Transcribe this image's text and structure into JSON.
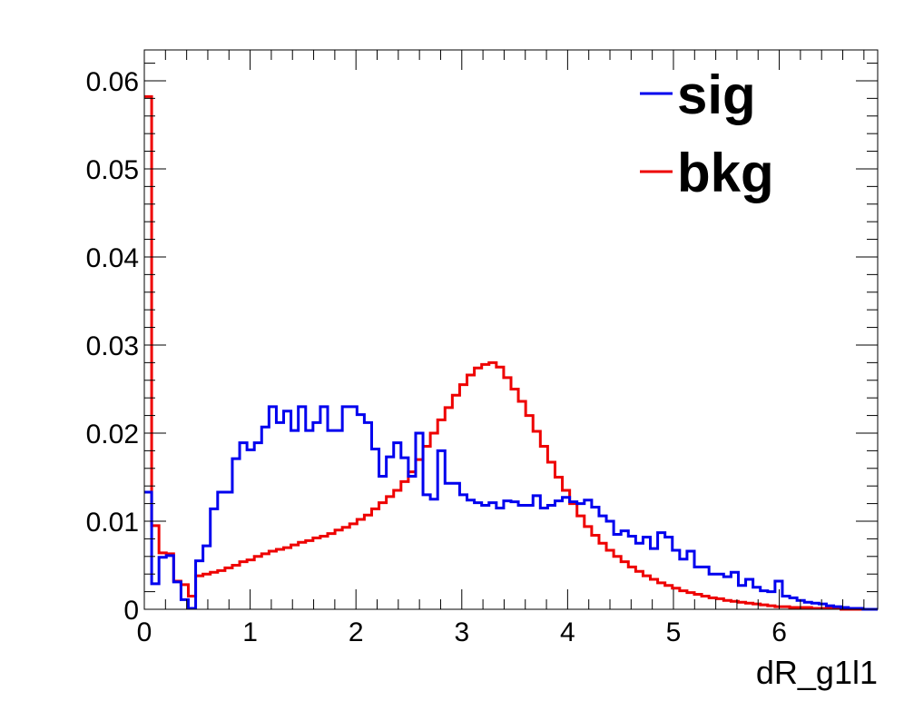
{
  "chart_data": {
    "type": "line",
    "title": "",
    "xlabel": "dR_g1l1",
    "ylabel": "",
    "xlim": [
      0,
      6.93
    ],
    "ylim": [
      0,
      0.0635
    ],
    "grid": false,
    "legend_position": "top-right",
    "x_ticks": [
      {
        "value": 0,
        "label": "0"
      },
      {
        "value": 1,
        "label": "1"
      },
      {
        "value": 2,
        "label": "2"
      },
      {
        "value": 3,
        "label": "3"
      },
      {
        "value": 4,
        "label": "4"
      },
      {
        "value": 5,
        "label": "5"
      },
      {
        "value": 6,
        "label": "6"
      }
    ],
    "y_ticks": [
      {
        "value": 0,
        "label": "0"
      },
      {
        "value": 0.01,
        "label": "0.01"
      },
      {
        "value": 0.02,
        "label": "0.02"
      },
      {
        "value": 0.03,
        "label": "0.03"
      },
      {
        "value": 0.04,
        "label": "0.04"
      },
      {
        "value": 0.05,
        "label": "0.05"
      },
      {
        "value": 0.06,
        "label": "0.06"
      }
    ],
    "bin_width": 0.0693,
    "series": [
      {
        "name": "sig",
        "color": "#0000ee",
        "values": [
          0.0133,
          0.0029,
          0.0059,
          0.0061,
          0.0031,
          0.0011,
          0.0001,
          0.0055,
          0.0072,
          0.0114,
          0.0133,
          0.0133,
          0.0171,
          0.0189,
          0.0181,
          0.0189,
          0.0207,
          0.023,
          0.0212,
          0.0225,
          0.0203,
          0.023,
          0.0203,
          0.0212,
          0.023,
          0.0203,
          0.0203,
          0.023,
          0.023,
          0.0221,
          0.0212,
          0.0182,
          0.0151,
          0.0173,
          0.0189,
          0.0172,
          0.0151,
          0.02,
          0.013,
          0.0125,
          0.018,
          0.0143,
          0.0143,
          0.013,
          0.0124,
          0.0121,
          0.0118,
          0.0121,
          0.0115,
          0.0123,
          0.0122,
          0.0118,
          0.0118,
          0.0129,
          0.0115,
          0.0118,
          0.0123,
          0.0127,
          0.0122,
          0.012,
          0.0124,
          0.0116,
          0.0106,
          0.01,
          0.0085,
          0.0089,
          0.0083,
          0.0075,
          0.0082,
          0.0069,
          0.0087,
          0.0082,
          0.0067,
          0.0057,
          0.0066,
          0.0048,
          0.0048,
          0.004,
          0.004,
          0.0037,
          0.0042,
          0.0027,
          0.0034,
          0.0025,
          0.0021,
          0.002,
          0.0032,
          0.0015,
          0.0013,
          0.001,
          0.0008,
          0.0007,
          0.0006,
          0.0004,
          0.0003,
          0.0002,
          0.0001,
          0.0001,
          0.0,
          0.0
        ]
      },
      {
        "name": "bkg",
        "color": "#ee0000",
        "values": [
          0.0582,
          0.0095,
          0.0064,
          0.0063,
          0.0032,
          0.0028,
          0.0015,
          0.0038,
          0.004,
          0.0042,
          0.0044,
          0.0047,
          0.005,
          0.0054,
          0.0056,
          0.006,
          0.0063,
          0.0066,
          0.0068,
          0.007,
          0.0073,
          0.0076,
          0.0078,
          0.0081,
          0.0083,
          0.0086,
          0.009,
          0.0093,
          0.0097,
          0.0102,
          0.0107,
          0.0114,
          0.0121,
          0.0128,
          0.0135,
          0.0145,
          0.0156,
          0.017,
          0.0185,
          0.02,
          0.0215,
          0.0229,
          0.0243,
          0.0255,
          0.0266,
          0.0274,
          0.0278,
          0.028,
          0.0275,
          0.0263,
          0.025,
          0.0236,
          0.022,
          0.0202,
          0.0185,
          0.0167,
          0.015,
          0.0135,
          0.012,
          0.0106,
          0.0094,
          0.0084,
          0.0075,
          0.0067,
          0.006,
          0.0054,
          0.0048,
          0.0043,
          0.0038,
          0.0034,
          0.003,
          0.0027,
          0.0024,
          0.0021,
          0.0019,
          0.0017,
          0.0015,
          0.0013,
          0.0012,
          0.001,
          0.0009,
          0.0008,
          0.0007,
          0.0006,
          0.0005,
          0.0004,
          0.0003,
          0.0003,
          0.0002,
          0.0002,
          0.0002,
          0.0001,
          0.0001,
          0.0001,
          0.0001,
          0.0,
          0.0,
          0.0,
          0.0,
          0.0
        ]
      }
    ]
  }
}
